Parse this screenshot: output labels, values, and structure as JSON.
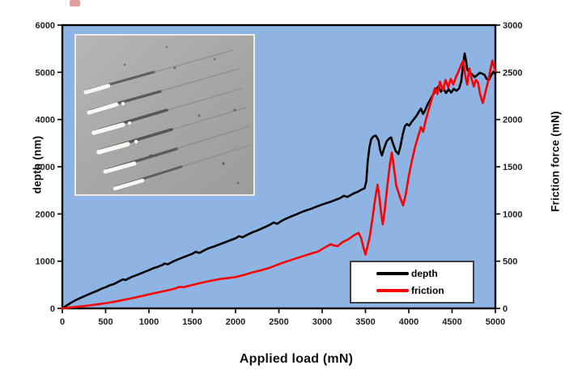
{
  "figure": {
    "x_axis_title": "Applied load (mN)",
    "y_axis_left_title": "depth (nm)",
    "y_axis_right_title": "Friction force (mN)"
  },
  "inset": {
    "description": "grayscale optical micrograph of six parallel scratch tracks with debris at track starts"
  },
  "colors": {
    "plot_background": "#8EB4E3",
    "plot_border": "#000000",
    "depth_series": "#000000",
    "friction_series": "#FF0000",
    "legend_border": "#3F3F3F"
  },
  "chart_data": {
    "type": "line",
    "title": "",
    "xlabel": "Applied load (mN)",
    "ylabel_left": "depth (nm)",
    "ylabel_right": "Friction force (mN)",
    "xlim": [
      0,
      5000
    ],
    "ylim_left": [
      0,
      6000
    ],
    "ylim_right": [
      0,
      3000
    ],
    "x_ticks": [
      0,
      500,
      1000,
      1500,
      2000,
      2500,
      3000,
      3500,
      4000,
      4500,
      5000
    ],
    "y_ticks_left": [
      0,
      1000,
      2000,
      3000,
      4000,
      5000,
      6000
    ],
    "y_ticks_right": [
      0,
      500,
      1000,
      1500,
      2000,
      2500,
      3000
    ],
    "grid": false,
    "plot_background": "#8EB4E3",
    "legend_position": "inside lower right",
    "series": [
      {
        "name": "depth",
        "axis": "left",
        "color": "#000000",
        "points": [
          [
            0,
            0
          ],
          [
            50,
            60
          ],
          [
            100,
            120
          ],
          [
            150,
            170
          ],
          [
            200,
            215
          ],
          [
            250,
            255
          ],
          [
            300,
            295
          ],
          [
            350,
            335
          ],
          [
            400,
            370
          ],
          [
            450,
            415
          ],
          [
            500,
            450
          ],
          [
            550,
            490
          ],
          [
            600,
            520
          ],
          [
            650,
            570
          ],
          [
            700,
            615
          ],
          [
            730,
            600
          ],
          [
            770,
            640
          ],
          [
            800,
            665
          ],
          [
            850,
            700
          ],
          [
            900,
            735
          ],
          [
            950,
            775
          ],
          [
            1000,
            810
          ],
          [
            1050,
            850
          ],
          [
            1100,
            880
          ],
          [
            1150,
            915
          ],
          [
            1180,
            950
          ],
          [
            1220,
            935
          ],
          [
            1260,
            975
          ],
          [
            1300,
            1010
          ],
          [
            1350,
            1050
          ],
          [
            1400,
            1085
          ],
          [
            1450,
            1120
          ],
          [
            1500,
            1155
          ],
          [
            1540,
            1200
          ],
          [
            1580,
            1175
          ],
          [
            1620,
            1210
          ],
          [
            1660,
            1250
          ],
          [
            1700,
            1280
          ],
          [
            1750,
            1310
          ],
          [
            1800,
            1345
          ],
          [
            1850,
            1380
          ],
          [
            1900,
            1415
          ],
          [
            1950,
            1450
          ],
          [
            2000,
            1485
          ],
          [
            2040,
            1530
          ],
          [
            2080,
            1505
          ],
          [
            2120,
            1545
          ],
          [
            2160,
            1580
          ],
          [
            2200,
            1615
          ],
          [
            2250,
            1650
          ],
          [
            2300,
            1690
          ],
          [
            2350,
            1730
          ],
          [
            2400,
            1775
          ],
          [
            2440,
            1820
          ],
          [
            2480,
            1790
          ],
          [
            2520,
            1840
          ],
          [
            2560,
            1880
          ],
          [
            2600,
            1915
          ],
          [
            2650,
            1955
          ],
          [
            2700,
            1990
          ],
          [
            2750,
            2030
          ],
          [
            2800,
            2065
          ],
          [
            2850,
            2095
          ],
          [
            2900,
            2130
          ],
          [
            2950,
            2165
          ],
          [
            3000,
            2200
          ],
          [
            3050,
            2230
          ],
          [
            3100,
            2260
          ],
          [
            3150,
            2295
          ],
          [
            3200,
            2330
          ],
          [
            3250,
            2385
          ],
          [
            3290,
            2360
          ],
          [
            3330,
            2400
          ],
          [
            3370,
            2440
          ],
          [
            3410,
            2470
          ],
          [
            3450,
            2510
          ],
          [
            3490,
            2545
          ],
          [
            3510,
            2700
          ],
          [
            3525,
            3100
          ],
          [
            3545,
            3400
          ],
          [
            3565,
            3580
          ],
          [
            3590,
            3640
          ],
          [
            3620,
            3660
          ],
          [
            3650,
            3560
          ],
          [
            3670,
            3350
          ],
          [
            3690,
            3240
          ],
          [
            3715,
            3390
          ],
          [
            3745,
            3540
          ],
          [
            3775,
            3600
          ],
          [
            3795,
            3620
          ],
          [
            3820,
            3480
          ],
          [
            3850,
            3330
          ],
          [
            3880,
            3270
          ],
          [
            3905,
            3440
          ],
          [
            3930,
            3680
          ],
          [
            3955,
            3860
          ],
          [
            3980,
            3905
          ],
          [
            4005,
            3870
          ],
          [
            4030,
            3940
          ],
          [
            4060,
            4010
          ],
          [
            4090,
            4080
          ],
          [
            4115,
            4160
          ],
          [
            4140,
            4230
          ],
          [
            4165,
            4120
          ],
          [
            4190,
            4200
          ],
          [
            4220,
            4330
          ],
          [
            4250,
            4430
          ],
          [
            4285,
            4540
          ],
          [
            4320,
            4660
          ],
          [
            4345,
            4700
          ],
          [
            4370,
            4590
          ],
          [
            4400,
            4660
          ],
          [
            4430,
            4560
          ],
          [
            4460,
            4640
          ],
          [
            4490,
            4570
          ],
          [
            4520,
            4650
          ],
          [
            4550,
            4610
          ],
          [
            4580,
            4660
          ],
          [
            4605,
            4800
          ],
          [
            4625,
            5120
          ],
          [
            4645,
            5400
          ],
          [
            4660,
            5260
          ],
          [
            4675,
            5060
          ],
          [
            4700,
            4990
          ],
          [
            4730,
            4960
          ],
          [
            4760,
            4900
          ],
          [
            4790,
            4940
          ],
          [
            4820,
            4990
          ],
          [
            4850,
            4970
          ],
          [
            4875,
            4945
          ],
          [
            4900,
            4860
          ],
          [
            4925,
            4840
          ],
          [
            4950,
            4930
          ],
          [
            4975,
            5010
          ],
          [
            5000,
            4960
          ]
        ]
      },
      {
        "name": "friction",
        "axis": "right",
        "color": "#FF0000",
        "points": [
          [
            0,
            0
          ],
          [
            100,
            10
          ],
          [
            200,
            20
          ],
          [
            300,
            30
          ],
          [
            400,
            42
          ],
          [
            500,
            55
          ],
          [
            600,
            70
          ],
          [
            700,
            88
          ],
          [
            800,
            107
          ],
          [
            900,
            127
          ],
          [
            1000,
            148
          ],
          [
            1100,
            168
          ],
          [
            1200,
            188
          ],
          [
            1300,
            210
          ],
          [
            1350,
            228
          ],
          [
            1400,
            225
          ],
          [
            1500,
            248
          ],
          [
            1600,
            270
          ],
          [
            1700,
            290
          ],
          [
            1800,
            308
          ],
          [
            1900,
            320
          ],
          [
            2000,
            332
          ],
          [
            2100,
            355
          ],
          [
            2200,
            382
          ],
          [
            2300,
            405
          ],
          [
            2400,
            432
          ],
          [
            2500,
            468
          ],
          [
            2600,
            500
          ],
          [
            2700,
            530
          ],
          [
            2800,
            560
          ],
          [
            2900,
            588
          ],
          [
            2950,
            600
          ],
          [
            3000,
            628
          ],
          [
            3050,
            655
          ],
          [
            3100,
            680
          ],
          [
            3140,
            665
          ],
          [
            3180,
            660
          ],
          [
            3240,
            705
          ],
          [
            3300,
            730
          ],
          [
            3360,
            770
          ],
          [
            3420,
            800
          ],
          [
            3450,
            745
          ],
          [
            3475,
            650
          ],
          [
            3500,
            570
          ],
          [
            3520,
            640
          ],
          [
            3550,
            760
          ],
          [
            3580,
            950
          ],
          [
            3610,
            1150
          ],
          [
            3640,
            1310
          ],
          [
            3660,
            1180
          ],
          [
            3685,
            980
          ],
          [
            3700,
            890
          ],
          [
            3720,
            1020
          ],
          [
            3750,
            1280
          ],
          [
            3780,
            1520
          ],
          [
            3805,
            1650
          ],
          [
            3830,
            1480
          ],
          [
            3855,
            1300
          ],
          [
            3880,
            1230
          ],
          [
            3905,
            1160
          ],
          [
            3935,
            1090
          ],
          [
            3965,
            1210
          ],
          [
            4000,
            1400
          ],
          [
            4035,
            1560
          ],
          [
            4070,
            1700
          ],
          [
            4105,
            1810
          ],
          [
            4140,
            1920
          ],
          [
            4165,
            1870
          ],
          [
            4195,
            1990
          ],
          [
            4225,
            2090
          ],
          [
            4260,
            2200
          ],
          [
            4300,
            2330
          ],
          [
            4330,
            2270
          ],
          [
            4360,
            2400
          ],
          [
            4395,
            2310
          ],
          [
            4425,
            2420
          ],
          [
            4455,
            2340
          ],
          [
            4485,
            2430
          ],
          [
            4515,
            2370
          ],
          [
            4545,
            2450
          ],
          [
            4575,
            2510
          ],
          [
            4605,
            2580
          ],
          [
            4630,
            2625
          ],
          [
            4650,
            2480
          ],
          [
            4675,
            2370
          ],
          [
            4700,
            2540
          ],
          [
            4725,
            2430
          ],
          [
            4750,
            2350
          ],
          [
            4775,
            2420
          ],
          [
            4800,
            2390
          ],
          [
            4825,
            2260
          ],
          [
            4855,
            2175
          ],
          [
            4885,
            2290
          ],
          [
            4915,
            2400
          ],
          [
            4945,
            2540
          ],
          [
            4965,
            2625
          ],
          [
            4985,
            2560
          ],
          [
            5000,
            2515
          ]
        ]
      }
    ]
  }
}
